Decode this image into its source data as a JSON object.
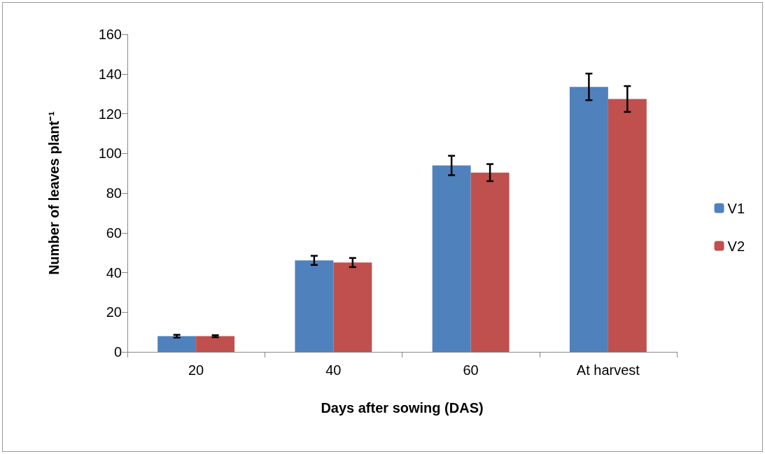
{
  "chart_data": {
    "type": "bar",
    "xlabel": "Days after sowing (DAS)",
    "ylabel": "Number of leaves plant⁻¹",
    "categories": [
      "20",
      "40",
      "60",
      "At harvest"
    ],
    "series": [
      {
        "name": "V1",
        "color": "#4f81bd",
        "values": [
          7.9,
          46.1,
          93.9,
          133.5
        ],
        "errors": [
          0.7,
          2.3,
          4.9,
          6.7
        ]
      },
      {
        "name": "V2",
        "color": "#c0504d",
        "values": [
          7.9,
          45.0,
          90.3,
          127.4
        ],
        "errors": [
          0.5,
          2.3,
          4.3,
          6.5
        ]
      }
    ],
    "ylim": [
      0,
      160
    ],
    "yticks": [
      0,
      20,
      40,
      60,
      80,
      100,
      120,
      140,
      160
    ],
    "grid": false,
    "legend": "right"
  }
}
